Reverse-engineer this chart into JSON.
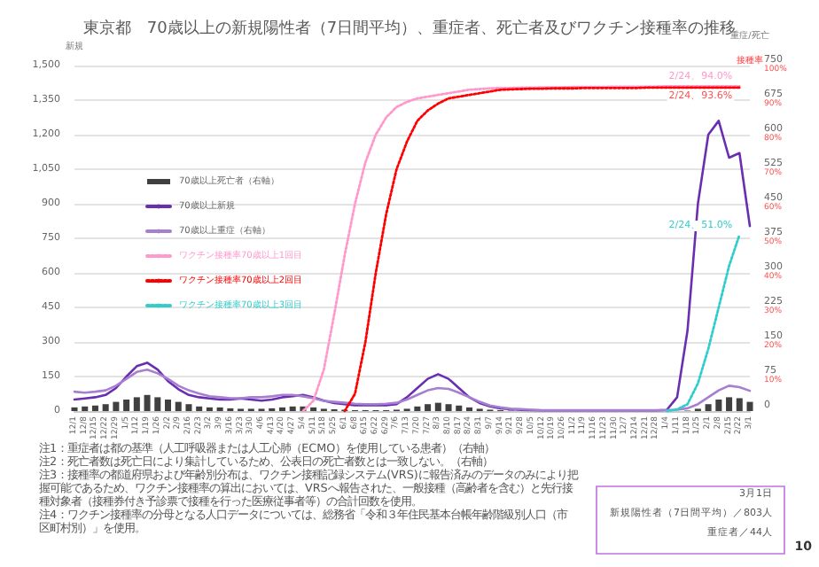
{
  "chart_data": {
    "type": "line",
    "title": "東京都　70歳以上の新規陽性者（7日間平均）、重症者、死亡者及びワクチン接種率の推移",
    "ylabel": "新規",
    "y2label": "重症/死亡",
    "y3label": "接種率",
    "categories": [
      "12/1",
      "12/8",
      "12/15",
      "12/22",
      "12/29",
      "1/5",
      "1/12",
      "1/19",
      "1/26",
      "2/2",
      "2/9",
      "2/16",
      "2/23",
      "3/2",
      "3/9",
      "3/16",
      "3/23",
      "3/30",
      "4/6",
      "4/13",
      "4/20",
      "4/27",
      "5/4",
      "5/11",
      "5/18",
      "5/25",
      "6/1",
      "6/8",
      "6/15",
      "6/22",
      "6/29",
      "7/6",
      "7/13",
      "7/20",
      "7/27",
      "8/3",
      "8/10",
      "8/17",
      "8/24",
      "8/31",
      "9/7",
      "9/14",
      "9/21",
      "9/28",
      "10/5",
      "10/12",
      "10/19",
      "10/26",
      "11/2",
      "11/9",
      "11/16",
      "11/23",
      "11/30",
      "12/7",
      "12/14",
      "12/21",
      "12/28",
      "1/4",
      "1/11",
      "1/18",
      "1/25",
      "2/1",
      "2/8",
      "2/15",
      "2/22",
      "3/1"
    ],
    "series": [
      {
        "name": "70歳以上死亡者（右軸）",
        "type": "bar",
        "axis": "y2",
        "color": "#404040",
        "values": [
          8,
          10,
          12,
          15,
          20,
          25,
          30,
          35,
          30,
          25,
          20,
          15,
          10,
          8,
          8,
          6,
          5,
          5,
          5,
          6,
          8,
          10,
          10,
          8,
          5,
          4,
          3,
          2,
          2,
          2,
          2,
          3,
          5,
          10,
          15,
          18,
          15,
          12,
          8,
          5,
          3,
          2,
          1,
          null,
          1,
          0,
          0,
          0,
          0,
          0,
          0,
          0,
          0,
          0,
          0,
          0,
          0,
          0,
          null,
          1,
          5,
          15,
          25,
          30,
          28,
          20
        ]
      },
      {
        "name": "70歳以上新規",
        "color": "#6a2fb0",
        "values": [
          50,
          55,
          60,
          70,
          100,
          150,
          195,
          210,
          180,
          130,
          95,
          70,
          60,
          55,
          50,
          50,
          55,
          50,
          45,
          50,
          60,
          65,
          70,
          60,
          45,
          35,
          30,
          25,
          25,
          25,
          25,
          30,
          60,
          100,
          140,
          160,
          140,
          100,
          60,
          35,
          20,
          12,
          8,
          5,
          4,
          3,
          3,
          3,
          3,
          3,
          3,
          3,
          3,
          3,
          3,
          3,
          3,
          5,
          60,
          350,
          900,
          1200,
          1260,
          1100,
          1120,
          803
        ]
      },
      {
        "name": "70歳以上重症（右軸）",
        "axis": "y2",
        "color": "#a77fd0",
        "values": [
          42,
          40,
          42,
          45,
          55,
          70,
          85,
          90,
          82,
          70,
          55,
          45,
          38,
          32,
          30,
          28,
          28,
          30,
          30,
          32,
          35,
          35,
          32,
          28,
          22,
          20,
          18,
          16,
          15,
          15,
          16,
          18,
          25,
          35,
          45,
          50,
          48,
          40,
          30,
          20,
          12,
          8,
          5,
          4,
          3,
          2,
          2,
          2,
          2,
          2,
          2,
          2,
          2,
          2,
          2,
          2,
          2,
          2,
          3,
          6,
          15,
          30,
          45,
          55,
          52,
          44
        ]
      },
      {
        "name": "ワクチン接種率70歳以上1回目",
        "axis": "y3",
        "color": "#ff99cc",
        "line_style": "dotted",
        "values": [
          null,
          null,
          null,
          null,
          null,
          null,
          null,
          null,
          null,
          null,
          null,
          null,
          null,
          null,
          null,
          null,
          null,
          null,
          null,
          null,
          null,
          null,
          0,
          3,
          12,
          28,
          45,
          60,
          72,
          80,
          85,
          88,
          89.5,
          90.5,
          91,
          91.5,
          92,
          92.5,
          93,
          93.2,
          93.4,
          93.5,
          93.5,
          93.6,
          93.6,
          93.7,
          93.7,
          93.7,
          93.8,
          93.8,
          93.8,
          93.8,
          93.9,
          93.9,
          93.9,
          93.9,
          93.9,
          94,
          94,
          94,
          94,
          94,
          94,
          94,
          94,
          null
        ]
      },
      {
        "name": "ワクチン接種率70歳以上2回目",
        "axis": "y3",
        "color": "#ff0000",
        "line_style": "dotted",
        "values": [
          null,
          null,
          null,
          null,
          null,
          null,
          null,
          null,
          null,
          null,
          null,
          null,
          null,
          null,
          null,
          null,
          null,
          null,
          null,
          null,
          null,
          null,
          null,
          null,
          null,
          null,
          0,
          5,
          20,
          40,
          57,
          70,
          78,
          84,
          87,
          89,
          90.5,
          91,
          91.5,
          92,
          92.5,
          93,
          93.1,
          93.2,
          93.3,
          93.3,
          93.4,
          93.4,
          93.4,
          93.5,
          93.5,
          93.5,
          93.5,
          93.5,
          93.5,
          93.6,
          93.6,
          93.6,
          93.6,
          93.6,
          93.6,
          93.6,
          93.6,
          93.6,
          93.6,
          null
        ]
      },
      {
        "name": "ワクチン接種率70歳以上3回目",
        "axis": "y3",
        "color": "#33cccc",
        "line_style": "dotted",
        "values": [
          null,
          null,
          null,
          null,
          null,
          null,
          null,
          null,
          null,
          null,
          null,
          null,
          null,
          null,
          null,
          null,
          null,
          null,
          null,
          null,
          null,
          null,
          null,
          null,
          null,
          null,
          null,
          null,
          null,
          null,
          null,
          null,
          null,
          null,
          null,
          null,
          null,
          null,
          null,
          null,
          null,
          null,
          null,
          null,
          null,
          null,
          null,
          null,
          null,
          null,
          null,
          null,
          null,
          null,
          null,
          null,
          null,
          0,
          0.5,
          2,
          8,
          18,
          30,
          42,
          51,
          null
        ]
      }
    ],
    "ylim": [
      0,
      1500
    ],
    "yticks": [
      0,
      150,
      300,
      450,
      600,
      750,
      900,
      {
        "value": 1050,
        "label": "1,050"
      },
      {
        "value": 1200,
        "label": "1,200"
      },
      {
        "value": 1350,
        "label": "1,350"
      },
      {
        "value": 1500,
        "label": "1,500"
      }
    ],
    "y2lim": [
      0,
      750
    ],
    "y2ticks": [
      0,
      75,
      150,
      225,
      300,
      375,
      450,
      525,
      600,
      675,
      750
    ],
    "y3lim": [
      0,
      100
    ],
    "y3ticks": [
      {
        "value": 10,
        "label": "10%"
      },
      {
        "value": 20,
        "label": "20%"
      },
      {
        "value": 30,
        "label": "30%"
      },
      {
        "value": 40,
        "label": "40%"
      },
      {
        "value": 50,
        "label": "50%"
      },
      {
        "value": 60,
        "label": "60%"
      },
      {
        "value": 70,
        "label": "70%"
      },
      {
        "value": 80,
        "label": "80%"
      },
      {
        "value": 90,
        "label": "90%"
      },
      {
        "value": 100,
        "label": "100%"
      }
    ],
    "grid": "y",
    "legend": "left",
    "marker": "none",
    "annotations": [
      "2/24、94.0%",
      "2/24、93.6%",
      "2/24、51.0%",
      "注1：重症者は都の基準（人工呼吸器または人工心肺（ECMO）を使用している患者）（右軸）",
      "注2：死亡者数は死亡日により集計しているため、公表日の死亡者数とは一致しない。（右軸）",
      "注3：接種率の都道府県および年齢別分布は、ワクチン接種記録システム(VRS)に報告済みのデータのみにより把握可能であるため、ワクチン接種率の算出においては、VRSへ報告された、一般接種（高齢者を含む）と先行接種対象者（接種券付き予診票で接種を行った医療従事者等）の合計回数を使用。",
      "注4：ワクチン接種率の分母となる人口データについては、総務省「令和３年住民基本台帳年齢階級別人口（市区町村別）」を使用。",
      "3月1日",
      "新規陽性者（7日間平均）／803人",
      "重症者／44人",
      "10"
    ]
  }
}
